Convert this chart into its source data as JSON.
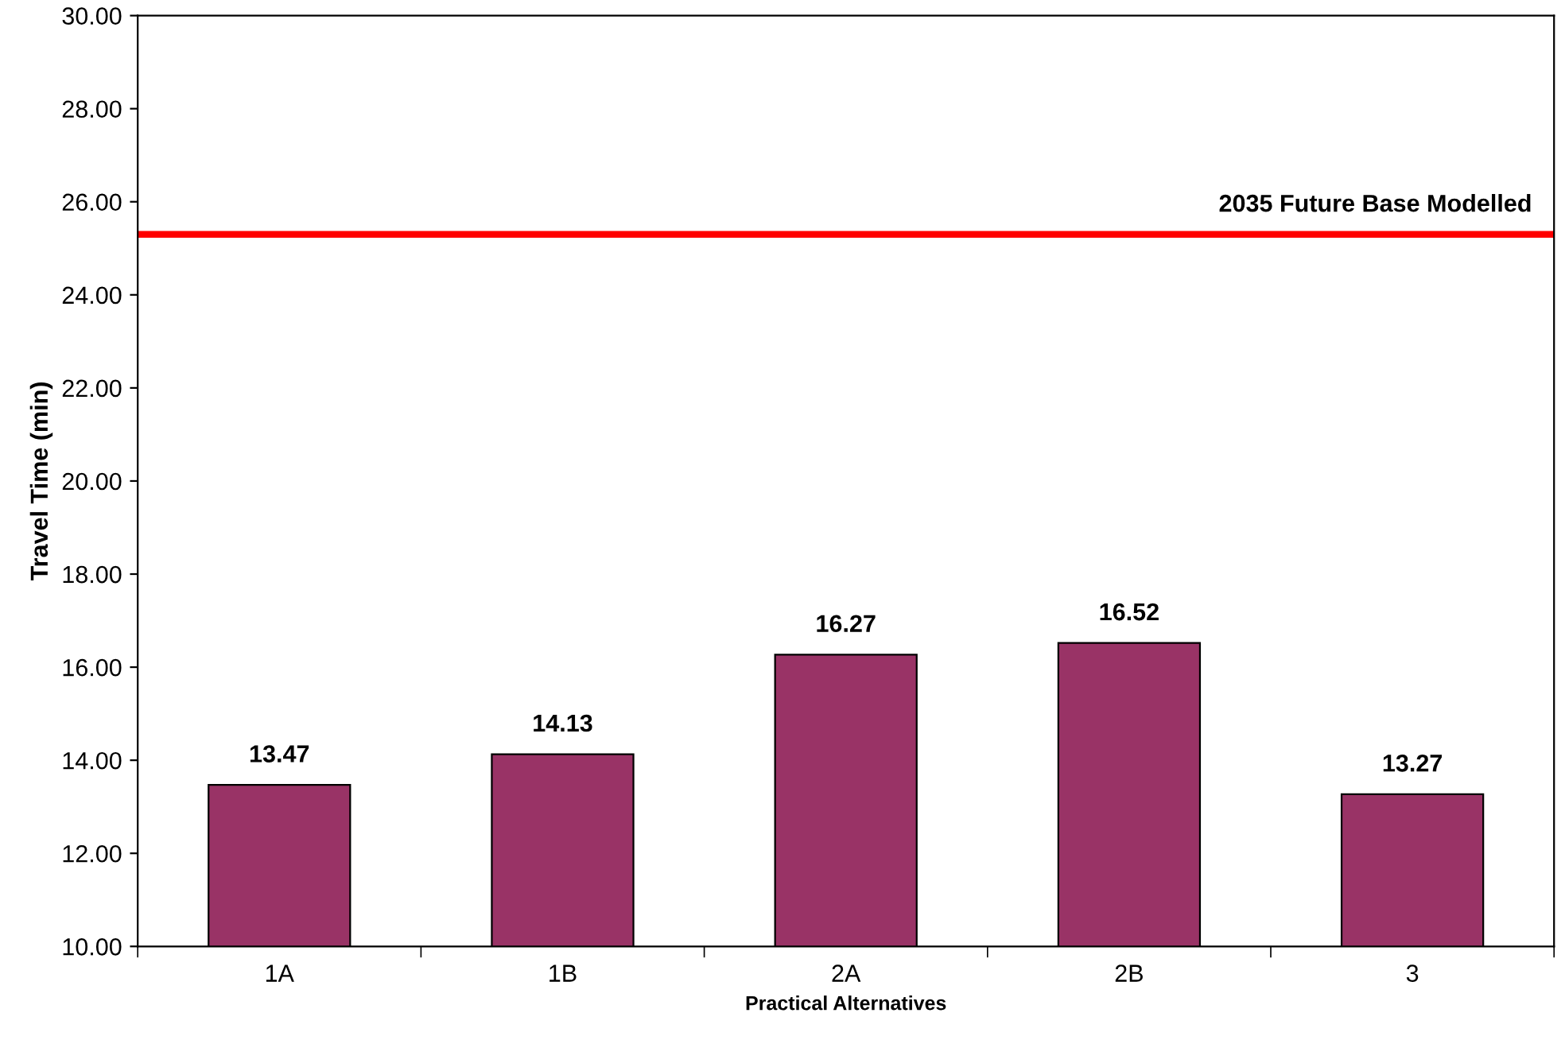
{
  "chart_data": {
    "type": "bar",
    "xlabel": "Practical Alternatives",
    "ylabel": "Travel Time (min)",
    "categories": [
      "1A",
      "1B",
      "2A",
      "2B",
      "3"
    ],
    "values": [
      13.47,
      14.13,
      16.27,
      16.52,
      13.27
    ],
    "color": "#993366",
    "data_labels": true,
    "ylim": [
      10,
      30
    ],
    "yticks": [
      {
        "value": 10,
        "label": "10.00"
      },
      {
        "value": 12,
        "label": "12.00"
      },
      {
        "value": 14,
        "label": "14.00"
      },
      {
        "value": 16,
        "label": "16.00"
      },
      {
        "value": 18,
        "label": "18.00"
      },
      {
        "value": 20,
        "label": "20.00"
      },
      {
        "value": 22,
        "label": "22.00"
      },
      {
        "value": 24,
        "label": "24.00"
      },
      {
        "value": 26,
        "label": "26.00"
      },
      {
        "value": 28,
        "label": "28.00"
      },
      {
        "value": 30,
        "label": "30.00"
      }
    ],
    "ref_lines": [
      {
        "axis": "y",
        "value": 25.3,
        "label": "2035 Future Base Modelled",
        "color": "#ff0000"
      }
    ],
    "grid": false,
    "legend": false
  }
}
